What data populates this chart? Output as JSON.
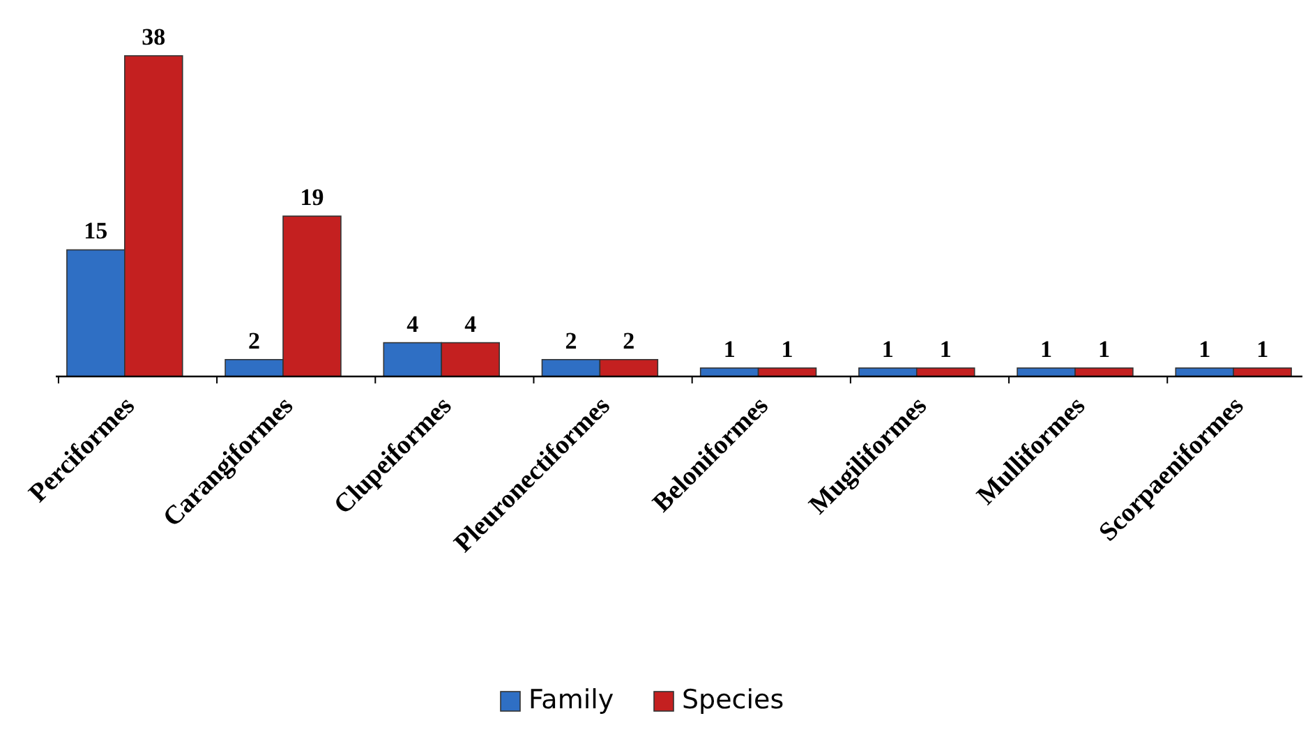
{
  "chart_data": {
    "type": "bar",
    "categories": [
      "Perciformes",
      "Carangiformes",
      "Clupeiformes",
      "Pleuronectiformes",
      "Beloniformes",
      "Mugiliformes",
      "Mulliformes",
      "Scorpaeniformes"
    ],
    "series": [
      {
        "name": "Family",
        "color": "#2f6fc4",
        "values": [
          15,
          2,
          4,
          2,
          1,
          1,
          1,
          1
        ]
      },
      {
        "name": "Species",
        "color": "#c42020",
        "values": [
          38,
          19,
          4,
          2,
          1,
          1,
          1,
          1
        ]
      }
    ],
    "data_labels": true,
    "legend": "bottom",
    "grid": false
  }
}
